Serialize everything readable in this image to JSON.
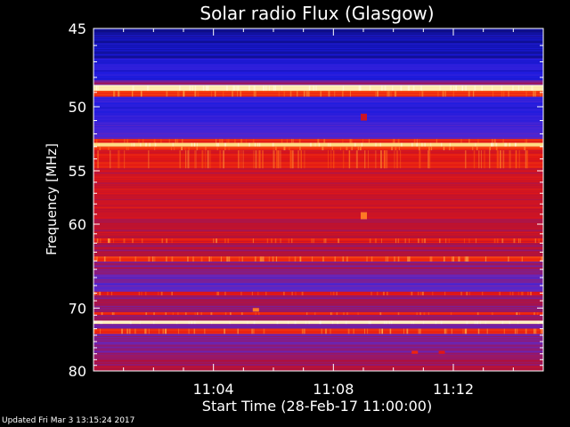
{
  "chart_data": {
    "type": "heatmap",
    "title": "Solar radio Flux (Glasgow)",
    "xlabel": "Start Time (28-Feb-17 11:00:00)",
    "ylabel": "Frequency [MHz]",
    "x_unit": "minutes after 11:00:00",
    "xlim": [
      0,
      15
    ],
    "ylim": [
      45,
      80
    ],
    "x_ticks": [
      {
        "value": 4,
        "label": "11:04"
      },
      {
        "value": 8,
        "label": "11:08"
      },
      {
        "value": 12,
        "label": "11:12"
      }
    ],
    "y_ticks": [
      {
        "value": 45,
        "label": "45"
      },
      {
        "value": 50,
        "label": "50"
      },
      {
        "value": 55,
        "label": "55"
      },
      {
        "value": 60,
        "label": "60"
      },
      {
        "value": 70,
        "label": "70"
      },
      {
        "value": 80,
        "label": "80"
      }
    ],
    "y_scale": "reciprocal",
    "colormap": [
      "#0a0a6e",
      "#1a1ae0",
      "#5a2ad0",
      "#b0103a",
      "#e81810",
      "#ff5a10",
      "#ffd060",
      "#fffbe0"
    ],
    "bands": [
      {
        "from": 45.0,
        "to": 45.5,
        "level": 0.05
      },
      {
        "from": 45.5,
        "to": 46.8,
        "level": 0.08
      },
      {
        "from": 46.8,
        "to": 48.2,
        "level": 0.16
      },
      {
        "from": 48.2,
        "to": 48.5,
        "level": 0.35
      },
      {
        "from": 48.5,
        "to": 48.9,
        "level": 0.95
      },
      {
        "from": 48.9,
        "to": 49.3,
        "level": 0.6
      },
      {
        "from": 49.3,
        "to": 50.8,
        "level": 0.18
      },
      {
        "from": 50.8,
        "to": 51.5,
        "level": 0.2
      },
      {
        "from": 51.5,
        "to": 52.4,
        "level": 0.24
      },
      {
        "from": 52.4,
        "to": 52.7,
        "level": 0.55
      },
      {
        "from": 52.7,
        "to": 53.0,
        "level": 0.9
      },
      {
        "from": 53.0,
        "to": 53.3,
        "level": 0.6
      },
      {
        "from": 53.3,
        "to": 54.8,
        "level": 0.55
      },
      {
        "from": 54.8,
        "to": 56.6,
        "level": 0.5
      },
      {
        "from": 56.6,
        "to": 59.5,
        "level": 0.5
      },
      {
        "from": 59.5,
        "to": 61.5,
        "level": 0.46
      },
      {
        "from": 61.5,
        "to": 62.0,
        "level": 0.58
      },
      {
        "from": 62.0,
        "to": 63.5,
        "level": 0.42
      },
      {
        "from": 63.5,
        "to": 64.1,
        "level": 0.62
      },
      {
        "from": 64.1,
        "to": 65.5,
        "level": 0.38
      },
      {
        "from": 65.5,
        "to": 66.5,
        "level": 0.32
      },
      {
        "from": 66.5,
        "to": 67.8,
        "level": 0.3
      },
      {
        "from": 67.8,
        "to": 68.3,
        "level": 0.55
      },
      {
        "from": 68.3,
        "to": 70.6,
        "level": 0.4
      },
      {
        "from": 70.6,
        "to": 71.0,
        "level": 0.58
      },
      {
        "from": 71.0,
        "to": 71.8,
        "level": 0.4
      },
      {
        "from": 71.8,
        "to": 72.3,
        "level": 0.95
      },
      {
        "from": 72.3,
        "to": 73.0,
        "level": 0.35
      },
      {
        "from": 73.0,
        "to": 73.8,
        "level": 0.62
      },
      {
        "from": 73.8,
        "to": 75.5,
        "level": 0.32
      },
      {
        "from": 75.5,
        "to": 78.0,
        "level": 0.36
      },
      {
        "from": 78.0,
        "to": 80.0,
        "level": 0.42
      }
    ],
    "bursts": [
      {
        "t": 9.0,
        "f_from": 58.8,
        "f_to": 59.5,
        "level": 0.75
      },
      {
        "t": 9.0,
        "f_from": 50.5,
        "f_to": 51.0,
        "level": 0.5
      },
      {
        "t": 5.4,
        "f_from": 70.0,
        "f_to": 70.5,
        "level": 0.75
      },
      {
        "t": 10.7,
        "f_from": 76.5,
        "f_to": 77.0,
        "level": 0.6
      },
      {
        "t": 11.6,
        "f_from": 76.5,
        "f_to": 77.0,
        "level": 0.55
      }
    ]
  },
  "footer": {
    "updated": "Updated Fri Mar  3 13:15:24 2017"
  }
}
